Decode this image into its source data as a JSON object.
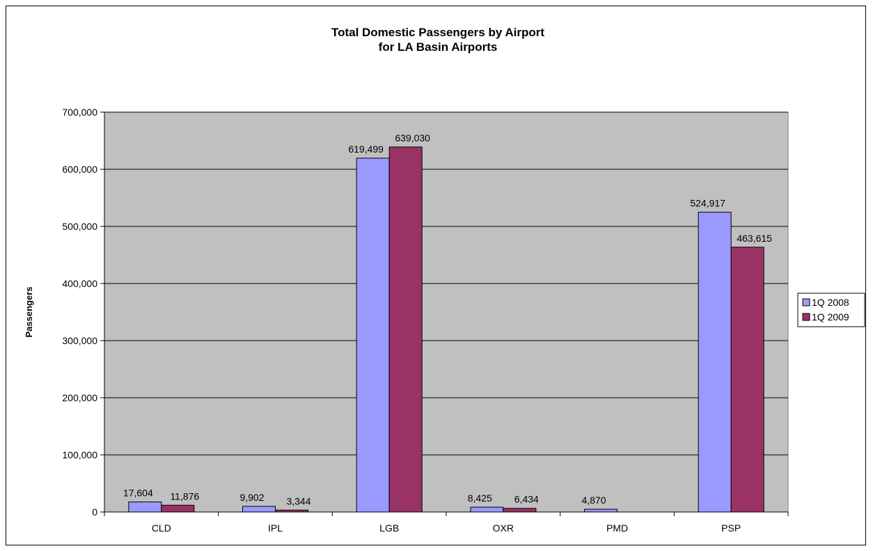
{
  "chart_data": {
    "type": "bar",
    "title": [
      "Total Domestic Passengers by Airport",
      "for LA Basin Airports"
    ],
    "xlabel": "",
    "ylabel": "Passengers",
    "categories": [
      "CLD",
      "IPL",
      "LGB",
      "OXR",
      "PMD",
      "PSP"
    ],
    "series": [
      {
        "name": "1Q 2008",
        "color": "#9999ff",
        "values": [
          17604,
          9902,
          619499,
          8425,
          4870,
          524917
        ],
        "labels": [
          "17,604",
          "9,902",
          "619,499",
          "8,425",
          "4,870",
          "524,917"
        ]
      },
      {
        "name": "1Q 2009",
        "color": "#993366",
        "values": [
          11876,
          3344,
          639030,
          6434,
          null,
          463615
        ],
        "labels": [
          "11,876",
          "3,344",
          "639,030",
          "6,434",
          "",
          "463,615"
        ]
      }
    ],
    "ylim": [
      0,
      700000
    ],
    "yticks": [
      0,
      100000,
      200000,
      300000,
      400000,
      500000,
      600000,
      700000
    ],
    "ytick_labels": [
      "0",
      "100,000",
      "200,000",
      "300,000",
      "400,000",
      "500,000",
      "600,000",
      "700,000"
    ],
    "grid": true,
    "plot_background": "#c0c0c0",
    "legend_position": "right"
  }
}
